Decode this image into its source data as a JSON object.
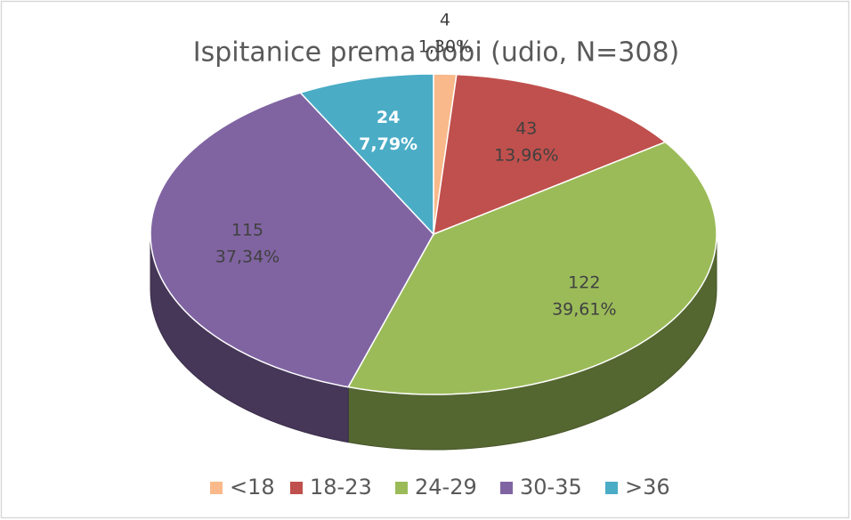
{
  "chart_data": {
    "type": "pie3d",
    "title": "Ispitanice prema dobi (udio, N=308)",
    "categories": [
      "<18",
      "18-23",
      "24-29",
      "30-35",
      ">36"
    ],
    "values": [
      4,
      43,
      122,
      115,
      24
    ],
    "percent_labels": [
      "1,30%",
      "13,96%",
      "39,61%",
      "37,34%",
      "7,79%"
    ],
    "colors": [
      "#f9b98a",
      "#c0504d",
      "#9bbb59",
      "#8064a2",
      "#4bacc6"
    ],
    "legend": "bottom"
  }
}
